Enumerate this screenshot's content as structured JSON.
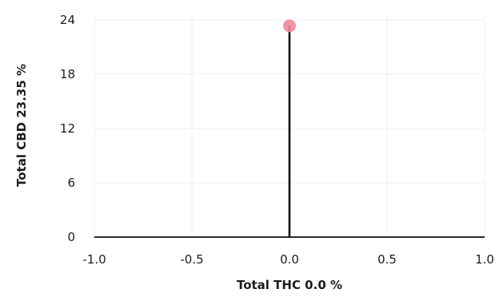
{
  "chart_data": {
    "type": "scatter",
    "xlabel": "Total THC 0.0 %",
    "ylabel": "Total CBD 23.35 %",
    "xlim": [
      -1.0,
      1.0
    ],
    "ylim": [
      0,
      24
    ],
    "x_ticks": [
      "-1.0",
      "-0.5",
      "0.0",
      "0.5",
      "1.0"
    ],
    "y_ticks": [
      "0",
      "6",
      "12",
      "18",
      "24"
    ],
    "grid": true,
    "points": [
      {
        "x": 0.0,
        "y": 23.35
      }
    ],
    "colors": {
      "point": "#f08a9a",
      "stem": "#000000"
    }
  }
}
